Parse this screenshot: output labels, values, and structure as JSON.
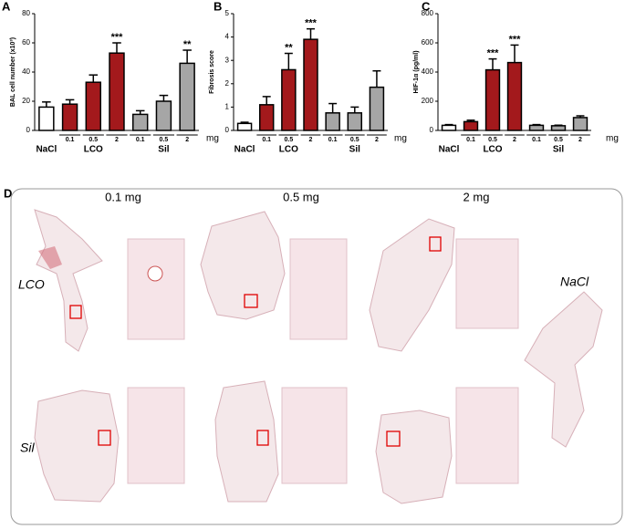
{
  "chart_data": [
    {
      "type": "bar",
      "panel_label": "A",
      "y_label": "BAL cell number (x10³)",
      "categories": [
        "NaCl",
        "0.1",
        "0.5",
        "2",
        "0.1",
        "0.5",
        "2"
      ],
      "group_labels": [
        "LCO",
        "Sil"
      ],
      "unit_label": "mg",
      "values": [
        16,
        18,
        33,
        53,
        11,
        20,
        46
      ],
      "errors": [
        3.5,
        3,
        5,
        7,
        2.5,
        4,
        9
      ],
      "significance": [
        null,
        null,
        null,
        "***",
        null,
        null,
        "**"
      ],
      "colors": [
        "#ffffff",
        "#a3191c",
        "#a3191c",
        "#a3191c",
        "#a6a6a6",
        "#a6a6a6",
        "#a6a6a6"
      ],
      "ylim": [
        0,
        80
      ],
      "yticks": [
        0,
        20,
        40,
        60,
        80
      ]
    },
    {
      "type": "bar",
      "panel_label": "B",
      "y_label": "Fibrosis score",
      "categories": [
        "NaCl",
        "0.1",
        "0.5",
        "2",
        "0.1",
        "0.5",
        "2"
      ],
      "group_labels": [
        "LCO",
        "Sil"
      ],
      "unit_label": "mg",
      "values": [
        0.3,
        1.1,
        2.6,
        3.9,
        0.75,
        0.75,
        1.85
      ],
      "errors": [
        0.05,
        0.35,
        0.7,
        0.45,
        0.4,
        0.25,
        0.7
      ],
      "significance": [
        null,
        null,
        "**",
        "***",
        null,
        null,
        null
      ],
      "colors": [
        "#ffffff",
        "#a3191c",
        "#a3191c",
        "#a3191c",
        "#a6a6a6",
        "#a6a6a6",
        "#a6a6a6"
      ],
      "ylim": [
        0,
        5
      ],
      "yticks": [
        0,
        1,
        2,
        3,
        4,
        5
      ]
    },
    {
      "type": "bar",
      "panel_label": "C",
      "y_label": "HIF-1α (pg/ml)",
      "categories": [
        "NaCl",
        "0.1",
        "0.5",
        "2",
        "0.1",
        "0.5",
        "2"
      ],
      "group_labels": [
        "LCO",
        "Sil"
      ],
      "unit_label": "mg",
      "values": [
        35,
        60,
        415,
        465,
        35,
        32,
        88
      ],
      "errors": [
        5,
        10,
        75,
        120,
        5,
        4,
        12
      ],
      "significance": [
        null,
        null,
        "***",
        "***",
        null,
        null,
        null
      ],
      "colors": [
        "#ffffff",
        "#a3191c",
        "#a3191c",
        "#a3191c",
        "#a6a6a6",
        "#a6a6a6",
        "#a6a6a6"
      ],
      "ylim": [
        0,
        800
      ],
      "yticks": [
        0,
        200,
        400,
        600,
        800
      ]
    }
  ],
  "panel_d": {
    "panel_label": "D",
    "columns": [
      "0.1 mg",
      "0.5 mg",
      "2 mg"
    ],
    "rows": [
      "LCO",
      "Sil"
    ],
    "control": "NaCl"
  }
}
